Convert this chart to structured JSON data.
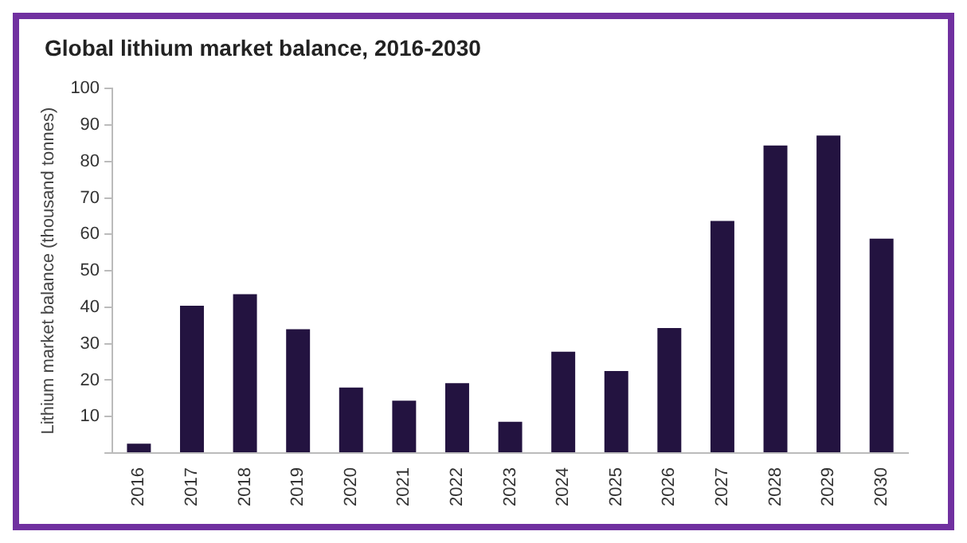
{
  "chart_data": {
    "type": "bar",
    "title": "Global lithium market balance, 2016-2030",
    "ylabel": "Lithium market balance (thousand tonnes)",
    "categories": [
      "2016",
      "2017",
      "2018",
      "2019",
      "2020",
      "2021",
      "2022",
      "2023",
      "2024",
      "2025",
      "2026",
      "2027",
      "2028",
      "2029",
      "2030"
    ],
    "values": [
      2.6,
      40.4,
      43.6,
      34,
      18,
      14.4,
      19.2,
      8.6,
      27.8,
      22.5,
      34.3,
      63.7,
      84.4,
      87.1,
      58.8
    ],
    "color": "#231340",
    "ylim": [
      0,
      100
    ],
    "yticks": [
      {
        "value": 0,
        "label": null
      },
      10,
      20,
      30,
      40,
      50,
      60,
      70,
      80,
      90,
      100
    ]
  }
}
